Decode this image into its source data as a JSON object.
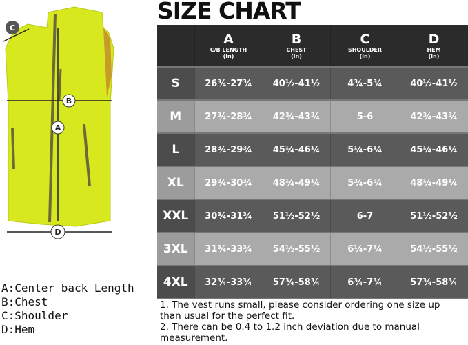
{
  "title": "SIZE CHART",
  "columns": [
    {
      "letter": "A",
      "name": "C/B LENGTH",
      "unit": "(in)"
    },
    {
      "letter": "B",
      "name": "CHEST",
      "unit": "(in)"
    },
    {
      "letter": "C",
      "name": "SHOULDER",
      "unit": "(in)"
    },
    {
      "letter": "D",
      "name": "HEM",
      "unit": "(in)"
    }
  ],
  "rows": [
    {
      "size": "S",
      "a": "26¾-27¾",
      "b": "40½-41½",
      "c": "4¾-5¾",
      "d": "40½-41½"
    },
    {
      "size": "M",
      "a": "27¾-28¾",
      "b": "42¾-43¾",
      "c": "5-6",
      "d": "42¾-43¾"
    },
    {
      "size": "L",
      "a": "28¾-29¾",
      "b": "45¼-46¼",
      "c": "5¼-6¼",
      "d": "45¼-46¼"
    },
    {
      "size": "XL",
      "a": "29¾-30¾",
      "b": "48¼-49¼",
      "c": "5¾-6¾",
      "d": "48¼-49¼"
    },
    {
      "size": "XXL",
      "a": "30¾-31¾",
      "b": "51½-52½",
      "c": "6-7",
      "d": "51½-52½"
    },
    {
      "size": "3XL",
      "a": "31¾-33¾",
      "b": "54½-55½",
      "c": "6¼-7¼",
      "d": "54½-55½"
    },
    {
      "size": "4XL",
      "a": "32¾-33¾",
      "b": "57¾-58¾",
      "c": "6¾-7¾",
      "d": "57¾-58¾"
    }
  ],
  "legend": [
    "A:Center back Length",
    "B:Chest",
    "C:Shoulder",
    "D:Hem"
  ],
  "notes": [
    "1. The vest runs small, please consider ordering one size up than usual for the perfect fit.",
    "2. There can be 0.4 to 1.2 inch deviation due to manual measurement."
  ],
  "diagram_labels": {
    "a": "A",
    "b": "B",
    "c": "C",
    "d": "D"
  },
  "colors": {
    "vest": "#d7e81e",
    "trim": "#6b6a3a",
    "header": "#2b2b2b"
  }
}
